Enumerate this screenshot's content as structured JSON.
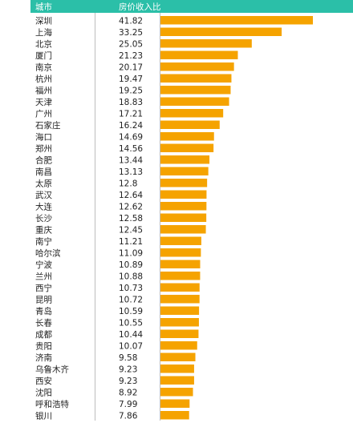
{
  "header": {
    "city_label": "城市",
    "value_label": "房价收入比"
  },
  "colors": {
    "header_bg": "#2bbfa8",
    "bar": "#f5a300",
    "text": "#222222"
  },
  "chart_data": {
    "type": "bar",
    "orientation": "horizontal",
    "categories": [
      "深圳",
      "上海",
      "北京",
      "厦门",
      "南京",
      "杭州",
      "福州",
      "天津",
      "广州",
      "石家庄",
      "海口",
      "郑州",
      "合肥",
      "南昌",
      "太原",
      "武汉",
      "大连",
      "长沙",
      "重庆",
      "南宁",
      "哈尔滨",
      "宁波",
      "兰州",
      "西宁",
      "昆明",
      "青岛",
      "长春",
      "成都",
      "贵阳",
      "济南",
      "乌鲁木齐",
      "西安",
      "沈阳",
      "呼和浩特",
      "银川"
    ],
    "labels": [
      "41.82",
      "33.25",
      "25.05",
      "21.23",
      "20.17",
      "19.47",
      "19.25",
      "18.83",
      "17.21",
      "16.24",
      "14.69",
      "14.56",
      "13.44",
      "13.13",
      "12.8",
      "12.64",
      "12.62",
      "12.58",
      "12.45",
      "11.21",
      "11.09",
      "10.89",
      "10.88",
      "10.73",
      "10.72",
      "10.59",
      "10.55",
      "10.44",
      "10.07",
      "9.58",
      "9.23",
      "9.23",
      "8.92",
      "7.99",
      "7.86"
    ],
    "values": [
      41.82,
      33.25,
      25.05,
      21.23,
      20.17,
      19.47,
      19.25,
      18.83,
      17.21,
      16.24,
      14.69,
      14.56,
      13.44,
      13.13,
      12.8,
      12.64,
      12.62,
      12.58,
      12.45,
      11.21,
      11.09,
      10.89,
      10.88,
      10.73,
      10.72,
      10.59,
      10.55,
      10.44,
      10.07,
      9.58,
      9.23,
      9.23,
      8.92,
      7.99,
      7.86
    ]
  }
}
